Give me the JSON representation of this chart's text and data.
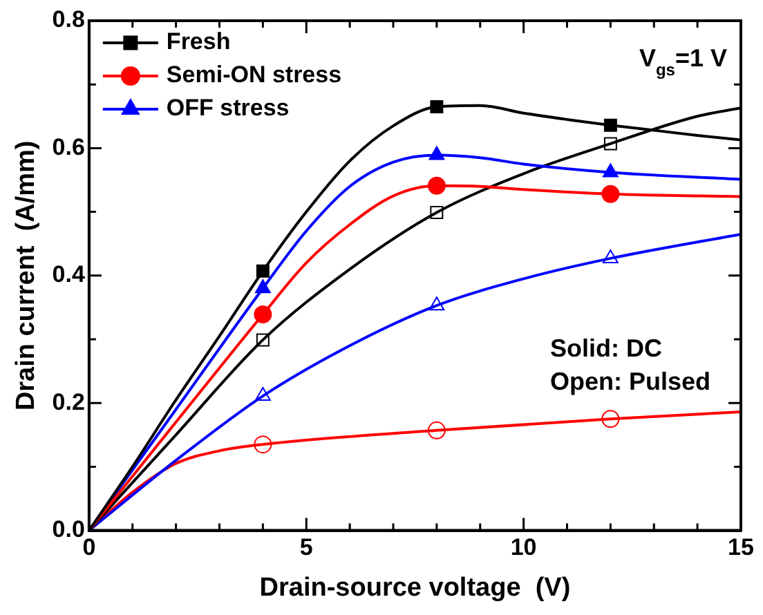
{
  "chart_data": {
    "type": "line",
    "xlabel": "Drain-source voltage  (V)",
    "ylabel": "Drain current  (A/mm)",
    "xlim": [
      0,
      15
    ],
    "xticks": [
      0,
      {
        "value": 1,
        "label": null
      },
      {
        "value": 2,
        "label": null
      },
      {
        "value": 3,
        "label": null
      },
      {
        "value": 4,
        "label": null
      },
      5,
      {
        "value": 6,
        "label": null
      },
      {
        "value": 7,
        "label": null
      },
      {
        "value": 8,
        "label": null
      },
      {
        "value": 9,
        "label": null
      },
      10,
      {
        "value": 11,
        "label": null
      },
      {
        "value": 12,
        "label": null
      },
      {
        "value": 13,
        "label": null
      },
      {
        "value": 14,
        "label": null
      },
      15
    ],
    "ylim": [
      0,
      0.8
    ],
    "yticks": [
      {
        "value": 0,
        "label": "0.0"
      },
      {
        "value": 0.1,
        "label": null
      },
      {
        "value": 0.2,
        "label": "0.2"
      },
      {
        "value": 0.3,
        "label": null
      },
      {
        "value": 0.4,
        "label": "0.4"
      },
      {
        "value": 0.5,
        "label": null
      },
      {
        "value": 0.6,
        "label": "0.6"
      },
      {
        "value": 0.7,
        "label": null
      },
      {
        "value": 0.8,
        "label": "0.8"
      }
    ],
    "grid": false,
    "legend": "top left",
    "line_style": "solid",
    "annotations": [
      "V$_{gs}$=1 V",
      "Solid: DC",
      "Open: Pulsed"
    ],
    "series": [
      {
        "color": "#000000",
        "x": [
          0,
          1,
          2,
          3,
          4,
          5,
          6,
          7,
          8,
          9,
          10,
          11,
          12,
          13,
          14,
          15
        ],
        "values": [
          0,
          0.1,
          0.205,
          0.305,
          0.407,
          0.5,
          0.58,
          0.635,
          0.665,
          0.667,
          0.655,
          0.645,
          0.636,
          0.628,
          0.62,
          0.613
        ]
      },
      {
        "color": "#ff0000",
        "x": [
          0,
          2,
          4,
          5,
          6,
          7,
          8,
          9,
          10,
          12,
          15
        ],
        "values": [
          0,
          0.17,
          0.339,
          0.42,
          0.48,
          0.525,
          0.541,
          0.54,
          0.535,
          0.528,
          0.524
        ]
      },
      {
        "color": "#0000ff",
        "x": [
          0,
          2,
          4,
          5,
          6,
          7,
          8,
          9,
          10,
          12,
          15
        ],
        "values": [
          0,
          0.19,
          0.38,
          0.47,
          0.54,
          0.578,
          0.589,
          0.585,
          0.575,
          0.562,
          0.551
        ]
      },
      {
        "color": "#000000",
        "x": [
          0,
          2,
          4,
          6,
          8,
          10,
          12,
          14,
          15
        ],
        "values": [
          0,
          0.15,
          0.299,
          0.41,
          0.499,
          0.56,
          0.607,
          0.65,
          0.663
        ]
      },
      {
        "color": "#0000ff",
        "x": [
          0,
          2,
          4,
          6,
          8,
          10,
          12,
          15
        ],
        "values": [
          0,
          0.11,
          0.211,
          0.29,
          0.353,
          0.395,
          0.427,
          0.465
        ]
      },
      {
        "color": "#ff0000",
        "x": [
          0,
          1,
          2,
          3,
          4,
          8,
          12,
          15
        ],
        "values": [
          0,
          0.06,
          0.105,
          0.125,
          0.135,
          0.157,
          0.175,
          0.186
        ]
      },
      {
        "type": "scatter",
        "name": "Fresh",
        "color": "#000000",
        "marker": "square",
        "x": [
          4,
          8,
          12
        ],
        "values": [
          0.407,
          0.665,
          0.636
        ]
      },
      {
        "type": "scatter",
        "name": "Semi-ON stress",
        "color": "#ff0000",
        "marker": "circle",
        "x": [
          4,
          8,
          12
        ],
        "values": [
          0.339,
          0.541,
          0.528
        ]
      },
      {
        "type": "scatter",
        "name": "OFF stress",
        "color": "#0000ff",
        "marker": "triangle",
        "x": [
          4,
          8,
          12
        ],
        "values": [
          0.38,
          0.589,
          0.562
        ]
      },
      {
        "type": "scatter",
        "color": "#000000",
        "marker": "square",
        "x": [
          4,
          8,
          12
        ],
        "values": [
          0.299,
          0.499,
          0.607
        ]
      },
      {
        "type": "scatter",
        "color": "#0000ff",
        "marker": "triangle",
        "x": [
          4,
          8,
          12
        ],
        "values": [
          0.211,
          0.353,
          0.427
        ]
      },
      {
        "type": "scatter",
        "color": "#ff0000",
        "marker": "circle",
        "x": [
          4,
          8,
          12
        ],
        "values": [
          0.135,
          0.157,
          0.175
        ]
      }
    ]
  }
}
